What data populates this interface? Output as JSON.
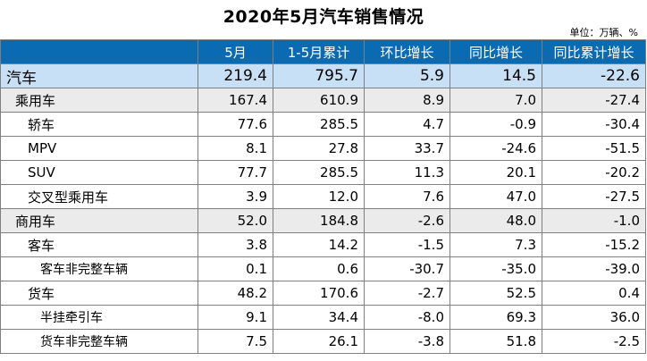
{
  "title": "2020年5月汽车销售情况",
  "unit": "单位：万辆、%",
  "table": {
    "headers": [
      "",
      "5月",
      "1-5月累计",
      "环比增长",
      "同比增长",
      "同比累计增长"
    ],
    "rows": [
      {
        "level": 0,
        "label": "汽车",
        "values": [
          "219.4",
          "795.7",
          "5.9",
          "14.5",
          "-22.6"
        ]
      },
      {
        "level": 1,
        "label": "乘用车",
        "values": [
          "167.4",
          "610.9",
          "8.9",
          "7.0",
          "-27.4"
        ]
      },
      {
        "level": 2,
        "label": "轿车",
        "values": [
          "77.6",
          "285.5",
          "4.7",
          "-0.9",
          "-30.4"
        ]
      },
      {
        "level": 2,
        "label": "MPV",
        "values": [
          "8.1",
          "27.8",
          "33.7",
          "-24.6",
          "-51.5"
        ]
      },
      {
        "level": 2,
        "label": "SUV",
        "values": [
          "77.7",
          "285.5",
          "11.3",
          "20.1",
          "-20.2"
        ]
      },
      {
        "level": 2,
        "label": "交叉型乘用车",
        "values": [
          "3.9",
          "12.0",
          "7.6",
          "47.0",
          "-27.5"
        ]
      },
      {
        "level": 1,
        "label": "商用车",
        "values": [
          "52.0",
          "184.8",
          "-2.6",
          "48.0",
          "-1.0"
        ]
      },
      {
        "level": 2,
        "label": "客车",
        "values": [
          "3.8",
          "14.2",
          "-1.5",
          "7.3",
          "-15.2"
        ]
      },
      {
        "level": 3,
        "label": "客车非完整车辆",
        "values": [
          "0.1",
          "0.6",
          "-30.7",
          "-35.0",
          "-39.0"
        ]
      },
      {
        "level": 2,
        "label": "货车",
        "values": [
          "48.2",
          "170.6",
          "-2.7",
          "52.5",
          "0.4"
        ]
      },
      {
        "level": 3,
        "label": "半挂牵引车",
        "values": [
          "9.1",
          "34.4",
          "-8.0",
          "69.3",
          "36.0"
        ]
      },
      {
        "level": 3,
        "label": "货车非完整车辆",
        "values": [
          "7.5",
          "26.1",
          "-3.8",
          "51.8",
          "-2.5"
        ]
      }
    ]
  }
}
